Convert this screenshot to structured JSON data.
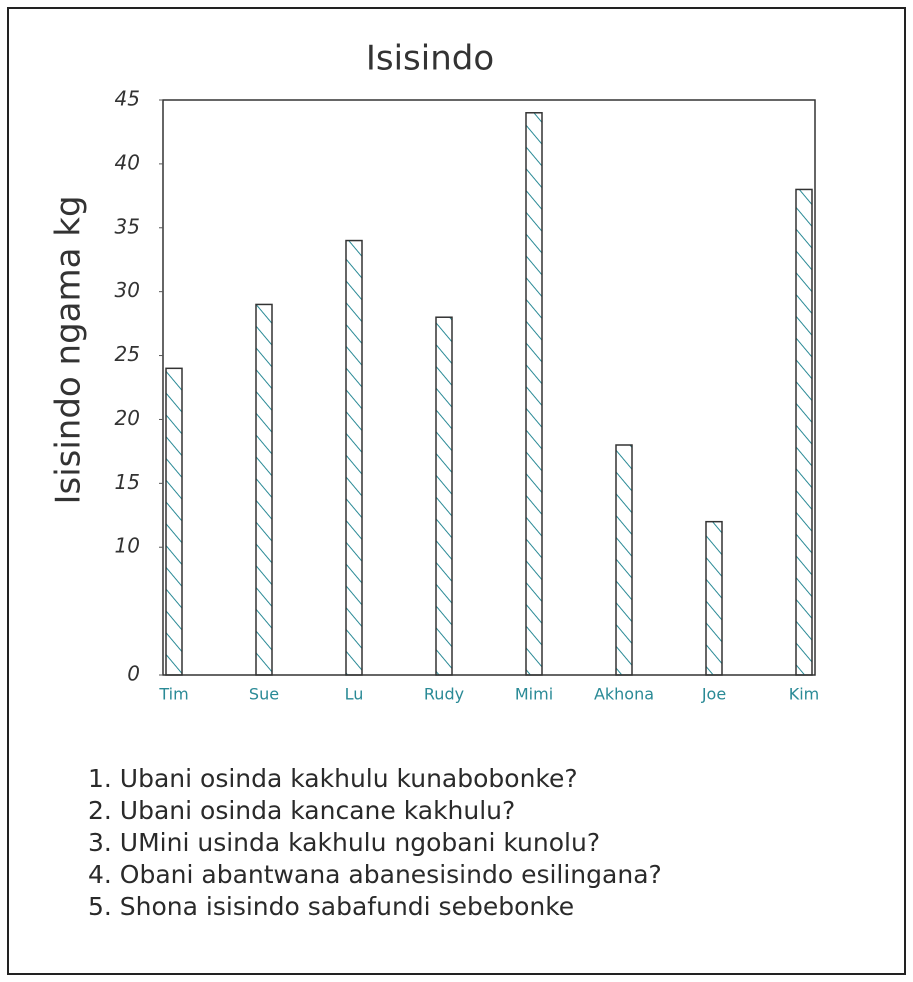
{
  "chart_data": {
    "type": "bar",
    "title": "Isisindo",
    "ylabel": "Isisindo ngama kg",
    "categories": [
      "Tim",
      "Sue",
      "Lu",
      "Rudy",
      "Mimi",
      "Akhona",
      "Joe",
      "Kim"
    ],
    "values": [
      24,
      29,
      34,
      28,
      44,
      18,
      12,
      38
    ],
    "color": "#2a8a96",
    "ylim": [
      0,
      45
    ],
    "yticks": [
      0,
      10,
      15,
      20,
      25,
      30,
      35,
      40,
      45
    ],
    "annotations": [
      "1. Ubani osinda kakhulu kunabobonke?",
      "2. Ubani osinda kancane kakhulu?",
      "3. UMini usinda kakhulu ngobani kunolu?",
      "4. Obani abantwana abanesisindo esilingana?",
      "5. Shona isisindo sabafundi sebebonke"
    ]
  }
}
